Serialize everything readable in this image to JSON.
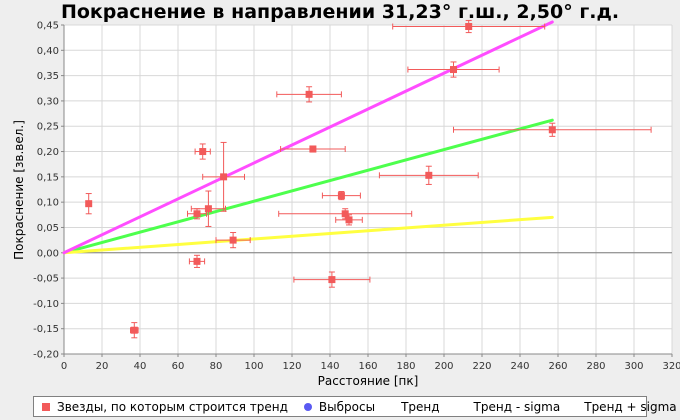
{
  "chart_data": {
    "type": "scatter",
    "title": "Покраснение в направлении 31,23° г.ш., 2,50° г.д.",
    "xlabel": "Расстояние [пк]",
    "ylabel": "Покраснение [зв.вел.]",
    "xlim": [
      0,
      320
    ],
    "ylim": [
      -0.2,
      0.45
    ],
    "x_ticks": [
      "0",
      "20",
      "40",
      "60",
      "80",
      "100",
      "120",
      "140",
      "160",
      "180",
      "200",
      "220",
      "240",
      "260",
      "280",
      "300",
      "320"
    ],
    "y_ticks": [
      "-0,20",
      "-0,15",
      "-0,10",
      "-0,05",
      "0,00",
      "0,05",
      "0,10",
      "0,15",
      "0,20",
      "0,25",
      "0,30",
      "0,35",
      "0,40",
      "0,45"
    ],
    "grid": true,
    "legend_position": "bottom",
    "colors": {
      "stars": "#f25a5a",
      "outliers": "#5a5af2",
      "trend": "#4dff4d",
      "trend_minus_sigma": "#ffff40",
      "trend_plus_sigma": "#ff4dff",
      "zero_line": "#808080"
    },
    "series": [
      {
        "name": "Звезды, по которым строится тренд",
        "points": [
          {
            "x": 13,
            "y": 0.097,
            "xerr": 0,
            "yerr": 0.02
          },
          {
            "x": 37,
            "y": -0.153,
            "xerr": 2,
            "yerr": 0.015
          },
          {
            "x": 70,
            "y": 0.077,
            "xerr": 5,
            "yerr": 0.01
          },
          {
            "x": 70,
            "y": -0.017,
            "xerr": 4,
            "yerr": 0.012
          },
          {
            "x": 73,
            "y": 0.2,
            "xerr": 4,
            "yerr": 0.015
          },
          {
            "x": 76,
            "y": 0.087,
            "xerr": 9,
            "yerr": 0.035
          },
          {
            "x": 84,
            "y": 0.15,
            "xerr": 11,
            "yerr": 0.068
          },
          {
            "x": 89,
            "y": 0.025,
            "xerr": 9,
            "yerr": 0.015
          },
          {
            "x": 129,
            "y": 0.313,
            "xerr": 17,
            "yerr": 0.015
          },
          {
            "x": 131,
            "y": 0.205,
            "xerr": 17,
            "yerr": 0.006
          },
          {
            "x": 141,
            "y": -0.053,
            "xerr": 20,
            "yerr": 0.015
          },
          {
            "x": 146,
            "y": 0.113,
            "xerr": 10,
            "yerr": 0.008
          },
          {
            "x": 148,
            "y": 0.077,
            "xerr": 35,
            "yerr": 0.01
          },
          {
            "x": 150,
            "y": 0.065,
            "xerr": 7,
            "yerr": 0.01
          },
          {
            "x": 192,
            "y": 0.153,
            "xerr": 26,
            "yerr": 0.018
          },
          {
            "x": 205,
            "y": 0.362,
            "xerr": 24,
            "yerr": 0.015
          },
          {
            "x": 213,
            "y": 0.447,
            "xerr": 40,
            "yerr": 0.012
          },
          {
            "x": 257,
            "y": 0.243,
            "xerr": 52,
            "yerr": 0.013
          }
        ]
      },
      {
        "name": "Выбросы",
        "points": []
      }
    ],
    "lines": [
      {
        "name": "Тренд",
        "x": [
          0,
          257
        ],
        "y": [
          0,
          0.262
        ]
      },
      {
        "name": "Тренд - sigma",
        "x": [
          0,
          257
        ],
        "y": [
          0,
          0.07
        ]
      },
      {
        "name": "Тренд + sigma",
        "x": [
          0,
          257
        ],
        "y": [
          0,
          0.456
        ]
      }
    ]
  },
  "legend": {
    "stars": "Звезды, по которым строится тренд",
    "outliers": "Выбросы",
    "trend": "Тренд",
    "trend_minus": "Тренд - sigma",
    "trend_plus": "Тренд + sigma"
  }
}
